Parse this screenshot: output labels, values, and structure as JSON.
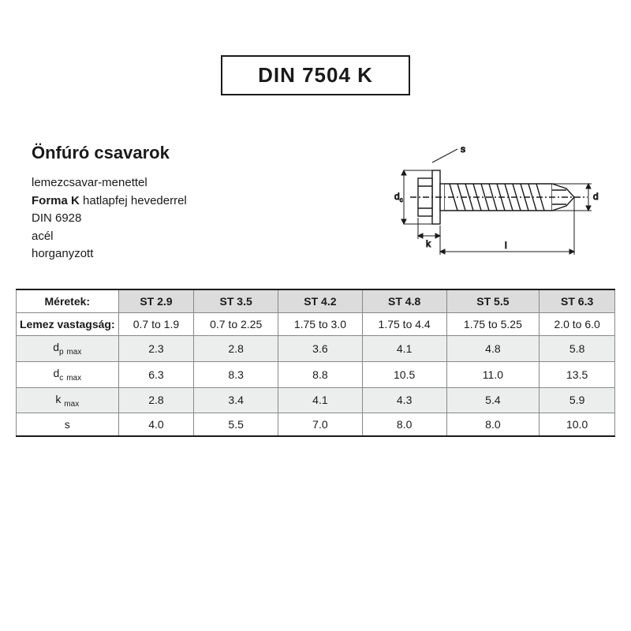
{
  "header": {
    "din_code": "DIN 7504 K"
  },
  "description": {
    "title": "Önfúró csavarok",
    "line1": "lemezcsavar-menettel",
    "line2a": "Forma K",
    "line2b": " hatlapfej hevederrel",
    "line3": "DIN 6928",
    "line4": "acél",
    "line5": "horganyzott"
  },
  "diagram": {
    "labels": {
      "s": "s",
      "dc": "d",
      "dc_sub": "c",
      "k": "k",
      "l": "l",
      "d": "d"
    },
    "stroke": "#1a1a1a",
    "fill": "#1a1a1a"
  },
  "table": {
    "header0": "Méretek:",
    "columns": [
      "ST 2.9",
      "ST 3.5",
      "ST 4.2",
      "ST 4.8",
      "ST 5.5",
      "ST 6.3"
    ],
    "rows": [
      {
        "label_html": "Lemez vastagság:",
        "shade": false,
        "bold_first": true,
        "values": [
          "0.7 to 1.9",
          "0.7 to 2.25",
          "1.75 to 3.0",
          "1.75 to 4.4",
          "1.75 to 5.25",
          "2.0 to 6.0"
        ]
      },
      {
        "label_html": "d<sub class='sub'>p</sub> <sub class='sub'>max</sub>",
        "shade": true,
        "values": [
          "2.3",
          "2.8",
          "3.6",
          "4.1",
          "4.8",
          "5.8"
        ]
      },
      {
        "label_html": "d<sub class='sub'>c</sub> <sub class='sub'>max</sub>",
        "shade": false,
        "values": [
          "6.3",
          "8.3",
          "8.8",
          "10.5",
          "11.0",
          "13.5"
        ]
      },
      {
        "label_html": "k <sub class='sub'>max</sub>",
        "shade": true,
        "values": [
          "2.8",
          "3.4",
          "4.1",
          "4.3",
          "5.4",
          "5.9"
        ]
      },
      {
        "label_html": "s",
        "shade": false,
        "values": [
          "4.0",
          "5.5",
          "7.0",
          "8.0",
          "8.0",
          "10.0"
        ]
      }
    ],
    "shade_bg": "#eceeee",
    "header_bg": "#dcdcdc",
    "border_dark": "#1a1a1a",
    "border_light": "#888888",
    "font_size": 14
  }
}
